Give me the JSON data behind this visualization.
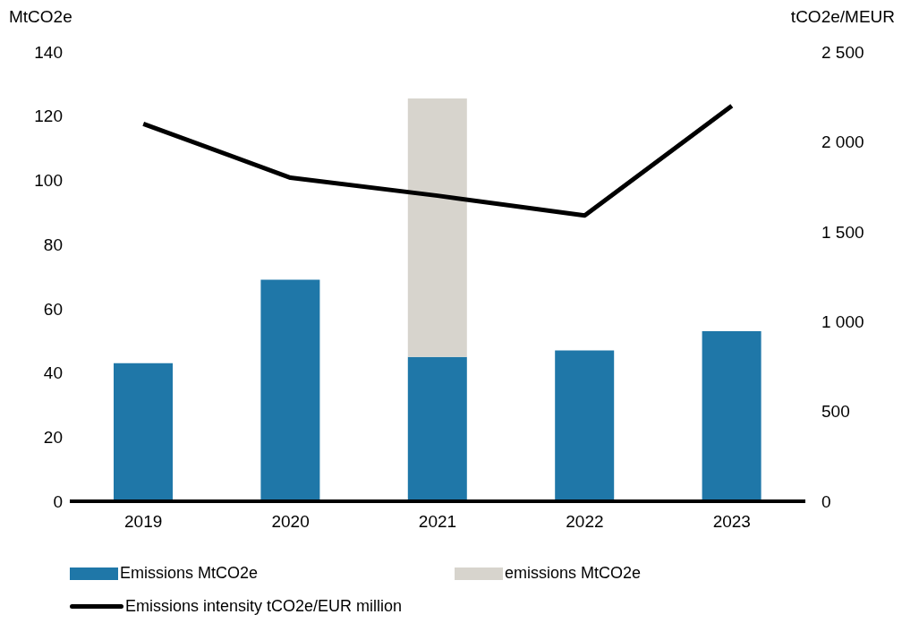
{
  "chart_data": {
    "type": "bar",
    "stacked": true,
    "ylabel": "MtCO2e",
    "y2label": "tCO2e/MEUR",
    "categories": [
      "2019",
      "2020",
      "2021",
      "2022",
      "2023"
    ],
    "series": [
      {
        "name": "Emissions MtCO2e",
        "color": "#1f77a8",
        "values": [
          43,
          69,
          45,
          47,
          53
        ]
      },
      {
        "name": "emissions MtCO2e",
        "color": "#d7d4cd",
        "values": [
          null,
          null,
          80.5,
          null,
          null
        ]
      },
      {
        "name": "Emissions intensity tCO2e/EUR million",
        "type": "line",
        "axis": "y2",
        "color": "#000000",
        "values": [
          2100,
          1800,
          1700,
          1590,
          2200
        ]
      }
    ],
    "ylim": [
      0,
      140
    ],
    "yticks": [
      0,
      20,
      40,
      60,
      80,
      100,
      120,
      140
    ],
    "y2lim": [
      0,
      2500
    ],
    "y2ticks": [
      0,
      {
        "value": 500,
        "label": "500"
      },
      {
        "value": 1000,
        "label": "1 000"
      },
      {
        "value": 1500,
        "label": "1 500"
      },
      {
        "value": 2000,
        "label": "2 000"
      },
      {
        "value": 2500,
        "label": "2 500"
      }
    ],
    "grid": false,
    "legend": "bottom",
    "marker": "none",
    "line_style": "solid"
  }
}
